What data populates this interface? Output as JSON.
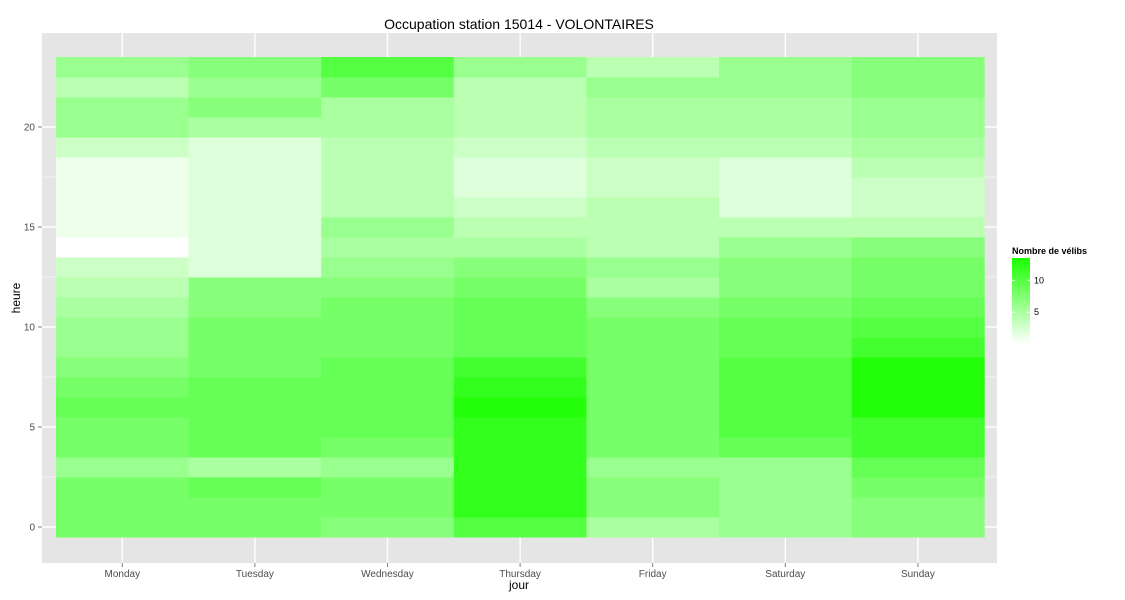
{
  "chart_data": {
    "type": "heatmap",
    "title": "Occupation station 15014 - VOLONTAIRES",
    "xlabel": "jour",
    "ylabel": "heure",
    "categories": [
      "Monday",
      "Tuesday",
      "Wednesday",
      "Thursday",
      "Friday",
      "Saturday",
      "Sunday"
    ],
    "hours": [
      0,
      1,
      2,
      3,
      4,
      5,
      6,
      7,
      8,
      9,
      10,
      11,
      12,
      13,
      14,
      15,
      16,
      17,
      18,
      19,
      20,
      21,
      22,
      23
    ],
    "values": [
      [
        8,
        8,
        8,
        6,
        8,
        8,
        9,
        8,
        7,
        6,
        6,
        5,
        4,
        3,
        0,
        1,
        1,
        1,
        1,
        3,
        6,
        6,
        4,
        6
      ],
      [
        8,
        8,
        9,
        5,
        9,
        9,
        9,
        9,
        8,
        8,
        8,
        7,
        7,
        2,
        2,
        2,
        2,
        2,
        2,
        2,
        5,
        7,
        6,
        7
      ],
      [
        7,
        8,
        8,
        6,
        8,
        9,
        9,
        9,
        9,
        8,
        8,
        8,
        7,
        6,
        5,
        6,
        4,
        4,
        4,
        4,
        5,
        5,
        8,
        10
      ],
      [
        10,
        12,
        12,
        12,
        12,
        12,
        13,
        12,
        11,
        9,
        9,
        9,
        8,
        7,
        5,
        4,
        3,
        2,
        2,
        3,
        4,
        4,
        4,
        6
      ],
      [
        5,
        7,
        7,
        6,
        8,
        8,
        8,
        8,
        8,
        8,
        8,
        7,
        5,
        6,
        4,
        4,
        4,
        3,
        3,
        4,
        5,
        5,
        6,
        4
      ],
      [
        6,
        6,
        6,
        6,
        9,
        10,
        10,
        10,
        10,
        9,
        9,
        8,
        7,
        7,
        6,
        4,
        2,
        2,
        2,
        4,
        5,
        5,
        6,
        6
      ],
      [
        7,
        7,
        8,
        9,
        11,
        11,
        13,
        13,
        13,
        11,
        10,
        9,
        8,
        8,
        7,
        4,
        3,
        3,
        4,
        5,
        6,
        6,
        7,
        7
      ]
    ],
    "xlim": [
      "Monday",
      "Sunday"
    ],
    "ylim": [
      -0.5,
      23.5
    ],
    "yticks": [
      0,
      5,
      10,
      15,
      20
    ],
    "grid": true,
    "legend": {
      "title": "Nombre de vélibs",
      "position": "right",
      "ticks": [
        5,
        10
      ],
      "range": [
        0,
        13.5
      ],
      "low_color": "#ffffff",
      "high_color": "#1aff00"
    }
  }
}
